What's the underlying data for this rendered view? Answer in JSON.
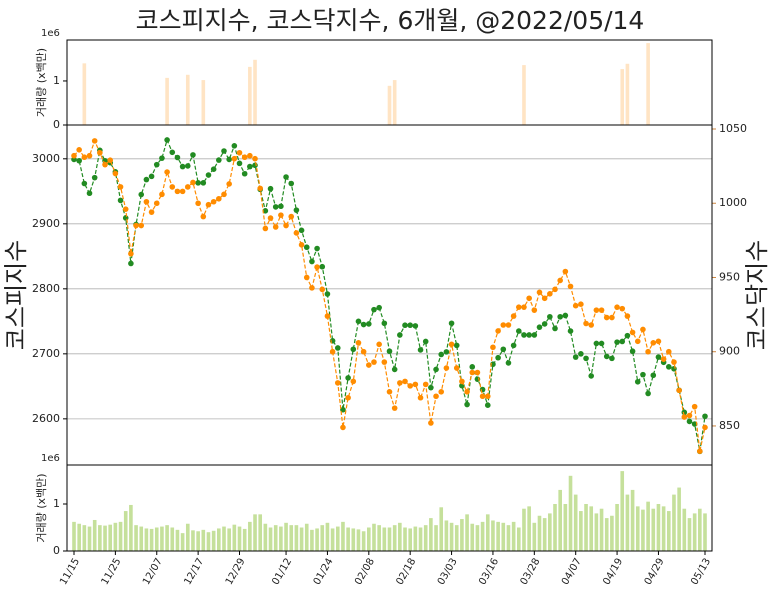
{
  "chart_data": [
    {
      "type": "bar",
      "title": "코스피지수, 코스닥지수, 6개월, @2022/05/14",
      "ylabel": "거래량 (x백만)",
      "offset_label": "1e6",
      "color": "#ffe4c4",
      "ylim": [
        0,
        1.93
      ],
      "yticks": [
        0,
        1
      ],
      "values": [
        0,
        0,
        1.4,
        0,
        0,
        0,
        0,
        0,
        0,
        0,
        0,
        0,
        0,
        0,
        0,
        0,
        0,
        0,
        1.07,
        0,
        0,
        0,
        1.14,
        0,
        0,
        1.02,
        0,
        0,
        0,
        0,
        0,
        0,
        0,
        0,
        1.32,
        1.48,
        0,
        0,
        0,
        0,
        0,
        0,
        0,
        0,
        0,
        0,
        0,
        0,
        0,
        0,
        0,
        0,
        0,
        0,
        0,
        0,
        0,
        0,
        0,
        0,
        0,
        0.89,
        1.02,
        0,
        0,
        0,
        0,
        0,
        0,
        0,
        0,
        0,
        0,
        0,
        0,
        0,
        0,
        0,
        0,
        0,
        0,
        0,
        0,
        0,
        0,
        0,
        0,
        1.36,
        0,
        0,
        0,
        0,
        0,
        0,
        0,
        0,
        0,
        0,
        0,
        0,
        0,
        0,
        0,
        0,
        0,
        0,
        1.27,
        1.39,
        0,
        0,
        0,
        1.86,
        0,
        0,
        0,
        0,
        0,
        0,
        0,
        0,
        0,
        0,
        0
      ]
    },
    {
      "type": "line",
      "ylabel": "코스피지수",
      "y2label": "코스닥지수",
      "ylim": [
        2529,
        3052
      ],
      "yticks": [
        2600,
        2700,
        2800,
        2900,
        3000
      ],
      "y2lim": [
        823.7,
        1052.7
      ],
      "y2ticks": [
        850,
        900,
        950,
        1000,
        1050
      ],
      "grid": true,
      "y2color": "#cd853f",
      "series": [
        {
          "color": "#228b22",
          "values": [
            2999,
            2997,
            2962,
            2947,
            2971,
            3013,
            2997,
            2994,
            2980,
            2936,
            2909,
            2839,
            2899,
            2945,
            2968,
            2973,
            2991,
            3001,
            3029,
            3010,
            3002,
            2988,
            2989,
            3006,
            2963,
            2963,
            2975,
            2984,
            2998,
            3012,
            2999,
            3020,
            2993,
            2977,
            2988,
            2990,
            2953,
            2920,
            2954,
            2926,
            2927,
            2972,
            2962,
            2921,
            2890,
            2864,
            2842,
            2862,
            2834,
            2792,
            2720,
            2709,
            2614,
            2663,
            2707,
            2750,
            2745,
            2746,
            2768,
            2771,
            2747,
            2704,
            2676,
            2729,
            2744,
            2744,
            2743,
            2706,
            2719,
            2648,
            2676,
            2699,
            2703,
            2747,
            2713,
            2651,
            2622,
            2680,
            2661,
            2645,
            2621,
            2684,
            2694,
            2707,
            2686,
            2713,
            2735,
            2729,
            2729,
            2729,
            2741,
            2746,
            2757,
            2739,
            2757,
            2759,
            2735,
            2695,
            2700,
            2693,
            2666,
            2716,
            2716,
            2696,
            2693,
            2718,
            2719,
            2728,
            2704,
            2657,
            2668,
            2639,
            2667,
            2695,
            2687,
            2680,
            2677,
            2644,
            2610,
            2596,
            2592,
            2550,
            2604
          ]
        },
        {
          "color": "#ff8c00",
          "axis": "y2",
          "values": [
            1032,
            1036,
            1031,
            1032,
            1042,
            1034,
            1026,
            1029,
            1020,
            1011,
            996,
            966,
            985,
            985,
            1001,
            994,
            1000,
            1006,
            1021,
            1011,
            1008,
            1008,
            1011,
            1014,
            1000,
            991,
            999,
            1001,
            1003,
            1006,
            1013,
            1030,
            1034,
            1031,
            1032,
            1030,
            1010,
            983,
            990,
            984,
            992,
            985,
            991,
            980,
            972,
            950,
            943,
            957,
            942,
            924,
            900,
            879,
            849,
            869,
            880,
            906,
            900,
            891,
            893,
            905,
            893,
            873,
            862,
            879,
            880,
            877,
            878,
            869,
            878,
            852,
            870,
            873,
            889,
            905,
            889,
            880,
            873,
            886,
            886,
            870,
            870,
            903,
            914,
            918,
            918,
            924,
            930,
            930,
            936,
            928,
            940,
            936,
            939,
            942,
            948,
            954,
            944,
            931,
            932,
            919,
            918,
            928,
            928,
            923,
            923,
            930,
            929,
            924,
            913,
            907,
            915,
            900,
            906,
            907,
            895,
            900,
            893,
            874,
            856,
            857,
            863,
            833,
            849
          ]
        }
      ]
    },
    {
      "type": "bar",
      "ylabel": "거래량 (x백만)",
      "offset_label": "1e6",
      "color": "#c5e09b",
      "ylim": [
        0,
        1.83
      ],
      "yticks": [
        0,
        1
      ],
      "categories": [
        "11/15",
        null,
        null,
        null,
        null,
        null,
        null,
        null,
        "11/25",
        null,
        null,
        null,
        null,
        null,
        null,
        null,
        "12/07",
        null,
        null,
        null,
        null,
        null,
        null,
        null,
        "12/17",
        null,
        null,
        null,
        null,
        null,
        null,
        null,
        "12/29",
        null,
        null,
        null,
        null,
        null,
        null,
        null,
        null,
        "01/12",
        null,
        null,
        null,
        null,
        null,
        null,
        null,
        "01/24",
        null,
        null,
        null,
        null,
        null,
        null,
        null,
        "02/08",
        null,
        null,
        null,
        null,
        null,
        null,
        null,
        "02/18",
        null,
        null,
        null,
        null,
        null,
        null,
        null,
        "03/03",
        null,
        null,
        null,
        null,
        null,
        null,
        null,
        "03/16",
        null,
        null,
        null,
        null,
        null,
        null,
        null,
        "03/28",
        null,
        null,
        null,
        null,
        null,
        null,
        null,
        "04/07",
        null,
        null,
        null,
        null,
        null,
        null,
        null,
        "04/19",
        null,
        null,
        null,
        null,
        null,
        null,
        null,
        "04/29",
        null,
        null,
        null,
        null,
        null,
        null,
        null,
        null,
        "05/13"
      ],
      "values": [
        0.62,
        0.58,
        0.55,
        0.52,
        0.66,
        0.55,
        0.54,
        0.56,
        0.6,
        0.62,
        0.85,
        0.98,
        0.55,
        0.52,
        0.48,
        0.47,
        0.5,
        0.52,
        0.55,
        0.5,
        0.45,
        0.38,
        0.58,
        0.44,
        0.42,
        0.45,
        0.4,
        0.43,
        0.48,
        0.52,
        0.48,
        0.56,
        0.52,
        0.47,
        0.62,
        0.78,
        0.78,
        0.58,
        0.5,
        0.55,
        0.52,
        0.6,
        0.55,
        0.55,
        0.5,
        0.58,
        0.45,
        0.48,
        0.55,
        0.6,
        0.48,
        0.52,
        0.62,
        0.5,
        0.48,
        0.46,
        0.42,
        0.5,
        0.58,
        0.55,
        0.5,
        0.5,
        0.55,
        0.6,
        0.5,
        0.48,
        0.52,
        0.5,
        0.55,
        0.7,
        0.55,
        0.93,
        0.65,
        0.6,
        0.55,
        0.68,
        0.78,
        0.58,
        0.55,
        0.62,
        0.78,
        0.65,
        0.62,
        0.6,
        0.55,
        0.62,
        0.5,
        0.9,
        0.95,
        0.6,
        0.75,
        0.7,
        0.8,
        1.0,
        1.3,
        1.0,
        1.6,
        1.2,
        0.85,
        1.0,
        0.95,
        0.8,
        0.9,
        0.7,
        0.75,
        1.0,
        1.7,
        1.2,
        1.3,
        0.95,
        0.88,
        1.05,
        0.9,
        1.0,
        0.95,
        0.85,
        1.2,
        1.35,
        0.9,
        0.7,
        0.8,
        0.9,
        0.8
      ]
    }
  ]
}
